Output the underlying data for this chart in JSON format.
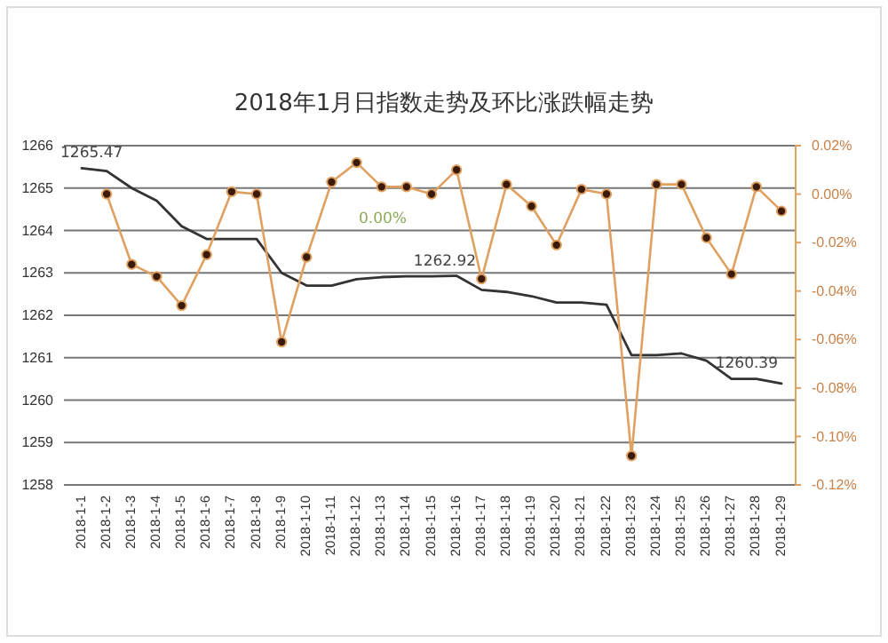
{
  "chart_data": {
    "type": "line",
    "title": "2018年1月日指数走势及环比涨跌幅走势",
    "categories": [
      "2018-1-1",
      "2018-1-2",
      "2018-1-3",
      "2018-1-4",
      "2018-1-5",
      "2018-1-6",
      "2018-1-7",
      "2018-1-8",
      "2018-1-9",
      "2018-1-10",
      "2018-1-11",
      "2018-1-12",
      "2018-1-13",
      "2018-1-14",
      "2018-1-15",
      "2018-1-16",
      "2018-1-17",
      "2018-1-18",
      "2018-1-19",
      "2018-1-20",
      "2018-1-21",
      "2018-1-22",
      "2018-1-23",
      "2018-1-24",
      "2018-1-25",
      "2018-1-26",
      "2018-1-27",
      "2018-1-28",
      "2018-1-29"
    ],
    "series": [
      {
        "color": "#333333",
        "marker": "none",
        "values": [
          1265.47,
          1265.4,
          1265.0,
          1264.7,
          1264.1,
          1263.8,
          1263.8,
          1263.8,
          1263.0,
          1262.7,
          1262.7,
          1262.85,
          1262.9,
          1262.92,
          1262.92,
          1262.93,
          1262.6,
          1262.55,
          1262.45,
          1262.3,
          1262.3,
          1262.25,
          1261.06,
          1261.06,
          1261.1,
          1260.93,
          1260.5,
          1260.5,
          1260.39
        ],
        "value_labels": [
          "1265.47",
          null,
          null,
          null,
          null,
          null,
          null,
          null,
          null,
          null,
          null,
          null,
          null,
          "1262.92",
          null,
          null,
          null,
          null,
          null,
          null,
          null,
          null,
          null,
          null,
          null,
          null,
          null,
          null,
          "1260.39"
        ]
      },
      {
        "color": "#e0a060",
        "marker": "circle",
        "axis": "y2",
        "values": [
          null,
          0.0,
          -0.029,
          -0.034,
          -0.046,
          -0.025,
          0.001,
          0.0,
          -0.061,
          -0.026,
          0.005,
          0.013,
          0.003,
          0.003,
          0.0,
          0.01,
          -0.035,
          0.004,
          -0.005,
          -0.021,
          0.002,
          0.0,
          -0.108,
          0.004,
          0.004,
          -0.018,
          -0.033,
          0.003,
          -0.007
        ],
        "value_labels": [
          null,
          null,
          null,
          null,
          null,
          null,
          null,
          null,
          null,
          null,
          null,
          null,
          null,
          null,
          "0.00%",
          null,
          null,
          null,
          null,
          null,
          null,
          null,
          null,
          null,
          null,
          null,
          null,
          null,
          null
        ]
      }
    ],
    "ylim": [
      1258,
      1266
    ],
    "yticks": [
      1258,
      1259,
      1260,
      1261,
      1262,
      1263,
      1264,
      1265,
      1266
    ],
    "y2lim": [
      -0.12,
      0.02
    ],
    "y2ticks": [
      {
        "value": -0.12,
        "label": "-0.12%"
      },
      {
        "value": -0.1,
        "label": "-0.10%"
      },
      {
        "value": -0.08,
        "label": "-0.08%"
      },
      {
        "value": -0.06,
        "label": "-0.06%"
      },
      {
        "value": -0.04,
        "label": "-0.04%"
      },
      {
        "value": -0.02,
        "label": "-0.02%"
      },
      {
        "value": 0,
        "label": "0.00%"
      },
      {
        "value": 0.02,
        "label": "0.02%"
      }
    ],
    "grid": "y"
  }
}
